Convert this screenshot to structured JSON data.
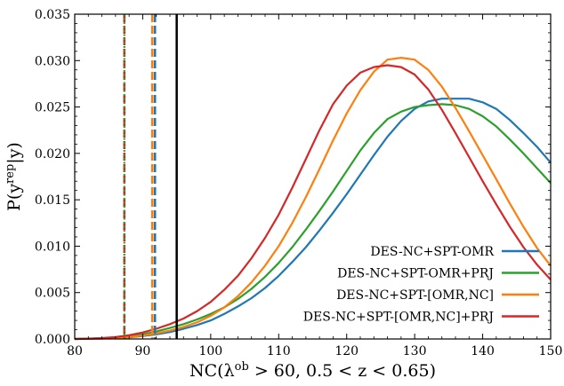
{
  "chart_data": {
    "type": "line",
    "title": "",
    "xlabel": "NC(λ^ob > 60, 0.5 < z < 0.65)",
    "ylabel": "P(y^rep|y)",
    "xlim": [
      80,
      150
    ],
    "ylim": [
      0,
      0.035
    ],
    "x_ticks": [
      "80",
      "90",
      "100",
      "110",
      "120",
      "130",
      "140",
      "150"
    ],
    "y_ticks": [
      "0.000",
      "0.005",
      "0.010",
      "0.015",
      "0.020",
      "0.025",
      "0.030",
      "0.035"
    ],
    "legend_position": "lower-right",
    "series": [
      {
        "name": "DES-NC+SPT-OMR",
        "color": "#1f77b4",
        "x": [
          80,
          82,
          84,
          86,
          88,
          90,
          92,
          94,
          96,
          98,
          100,
          102,
          104,
          106,
          108,
          110,
          112,
          114,
          116,
          118,
          120,
          122,
          124,
          126,
          128,
          130,
          132,
          134,
          136,
          138,
          140,
          142,
          144,
          146,
          148,
          150
        ],
        "y": [
          0.0,
          2e-05,
          5e-05,
          0.0001,
          0.00018,
          0.00032,
          0.0005,
          0.00075,
          0.0011,
          0.0015,
          0.002,
          0.0027,
          0.0035,
          0.0044,
          0.0055,
          0.0068,
          0.0083,
          0.0099,
          0.0117,
          0.0136,
          0.0156,
          0.0177,
          0.0198,
          0.0218,
          0.0235,
          0.0248,
          0.0256,
          0.0259,
          0.0259,
          0.0259,
          0.0255,
          0.0248,
          0.0236,
          0.0222,
          0.0207,
          0.019
        ]
      },
      {
        "name": "DES-NC+SPT-OMR+PRJ",
        "color": "#2ca02c",
        "x": [
          80,
          82,
          84,
          86,
          88,
          90,
          92,
          94,
          96,
          98,
          100,
          102,
          104,
          106,
          108,
          110,
          112,
          114,
          116,
          118,
          120,
          122,
          124,
          126,
          128,
          130,
          132,
          134,
          136,
          138,
          140,
          142,
          144,
          146,
          148,
          150
        ],
        "y": [
          0.0,
          3e-05,
          8e-05,
          0.00015,
          0.0003,
          0.0005,
          0.0008,
          0.0012,
          0.0016,
          0.0021,
          0.0027,
          0.0034,
          0.0043,
          0.0054,
          0.0067,
          0.0082,
          0.0099,
          0.0118,
          0.0138,
          0.0159,
          0.0181,
          0.0203,
          0.0222,
          0.0237,
          0.0245,
          0.025,
          0.0252,
          0.0253,
          0.0252,
          0.0248,
          0.024,
          0.0229,
          0.0215,
          0.02,
          0.0184,
          0.0168
        ]
      },
      {
        "name": "DES-NC+SPT-[OMR,NC]",
        "color": "#ff7f0e",
        "x": [
          80,
          82,
          84,
          86,
          88,
          90,
          92,
          94,
          96,
          98,
          100,
          102,
          104,
          106,
          108,
          110,
          112,
          114,
          116,
          118,
          120,
          122,
          124,
          126,
          128,
          130,
          132,
          134,
          136,
          138,
          140,
          142,
          144,
          146,
          148,
          150
        ],
        "y": [
          0.0,
          2e-05,
          5e-05,
          0.0001,
          0.0002,
          0.00036,
          0.0006,
          0.0009,
          0.0013,
          0.0018,
          0.0025,
          0.0034,
          0.0046,
          0.0061,
          0.0079,
          0.01,
          0.0125,
          0.0153,
          0.0183,
          0.0214,
          0.0243,
          0.0268,
          0.0288,
          0.0301,
          0.0303,
          0.0301,
          0.029,
          0.0272,
          0.0249,
          0.0224,
          0.0198,
          0.0172,
          0.0146,
          0.0121,
          0.0098,
          0.0079
        ]
      },
      {
        "name": "DES-NC+SPT-[OMR,NC]+PRJ",
        "color": "#d62728",
        "x": [
          80,
          82,
          84,
          86,
          88,
          90,
          92,
          94,
          96,
          98,
          100,
          102,
          104,
          106,
          108,
          110,
          112,
          114,
          116,
          118,
          120,
          122,
          124,
          126,
          128,
          130,
          132,
          134,
          136,
          138,
          140,
          142,
          144,
          146,
          148,
          150
        ],
        "y": [
          0.0,
          4e-05,
          0.0001,
          0.0002,
          0.0004,
          0.0007,
          0.0011,
          0.0016,
          0.0022,
          0.003,
          0.004,
          0.0053,
          0.0068,
          0.0087,
          0.0109,
          0.0134,
          0.0163,
          0.0194,
          0.0225,
          0.0253,
          0.0273,
          0.0287,
          0.0293,
          0.0295,
          0.0293,
          0.0285,
          0.0269,
          0.0247,
          0.0222,
          0.0196,
          0.017,
          0.0145,
          0.0121,
          0.0099,
          0.008,
          0.0064
        ]
      }
    ],
    "vertical_lines": [
      {
        "x": 87.3,
        "color": "#d62728",
        "style": "dashed"
      },
      {
        "x": 87.3,
        "color": "#2ca02c",
        "style": "dotted"
      },
      {
        "x": 91.4,
        "color": "#ff7f0e",
        "style": "dashed"
      },
      {
        "x": 91.8,
        "color": "#1f77b4",
        "style": "dashed"
      },
      {
        "x": 95.0,
        "color": "#000000",
        "style": "solid"
      }
    ]
  }
}
